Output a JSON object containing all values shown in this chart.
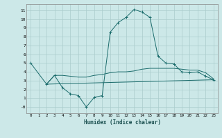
{
  "xlabel": "Humidex (Indice chaleur)",
  "background_color": "#cce8e8",
  "grid_color": "#aacccc",
  "line_color": "#1a6b6b",
  "xlim": [
    -0.5,
    23.5
  ],
  "ylim": [
    -0.7,
    11.7
  ],
  "yticks": [
    0,
    1,
    2,
    3,
    4,
    5,
    6,
    7,
    8,
    9,
    10,
    11
  ],
  "ytick_labels": [
    "-0",
    "1",
    "2",
    "3",
    "4",
    "5",
    "6",
    "7",
    "8",
    "9",
    "10",
    "11"
  ],
  "xticks": [
    0,
    1,
    2,
    3,
    4,
    5,
    6,
    7,
    8,
    9,
    10,
    11,
    12,
    13,
    14,
    15,
    16,
    17,
    18,
    19,
    20,
    21,
    22,
    23
  ],
  "line1_x": [
    0,
    2,
    3,
    4,
    5,
    6,
    7,
    8,
    9,
    10,
    11,
    12,
    13,
    14,
    15,
    16,
    17,
    18,
    19,
    20,
    21,
    22,
    23
  ],
  "line1_y": [
    5.0,
    2.6,
    3.6,
    2.2,
    1.5,
    1.3,
    0.0,
    1.1,
    1.3,
    8.5,
    9.6,
    10.2,
    11.1,
    10.8,
    10.2,
    5.8,
    5.0,
    4.9,
    4.0,
    3.9,
    4.0,
    3.5,
    3.1
  ],
  "line2_x": [
    2,
    3,
    4,
    5,
    6,
    7,
    8,
    9,
    10,
    11,
    12,
    13,
    14,
    15,
    16,
    17,
    18,
    19,
    20,
    21,
    22,
    23
  ],
  "line2_y": [
    2.6,
    3.6,
    3.6,
    3.5,
    3.4,
    3.4,
    3.6,
    3.7,
    3.9,
    4.0,
    4.0,
    4.1,
    4.3,
    4.4,
    4.4,
    4.4,
    4.4,
    4.3,
    4.2,
    4.2,
    3.9,
    3.2
  ],
  "line3_x": [
    2,
    23
  ],
  "line3_y": [
    2.6,
    3.1
  ],
  "marker_x": [
    0,
    2,
    3,
    4,
    5,
    6,
    7,
    8,
    9,
    10,
    11,
    12,
    13,
    14,
    15,
    16,
    17,
    18,
    19,
    20,
    21,
    22,
    23
  ],
  "marker_y": [
    5.0,
    2.6,
    3.6,
    2.2,
    1.5,
    1.3,
    0.0,
    1.1,
    1.3,
    8.5,
    9.6,
    10.2,
    11.1,
    10.8,
    10.2,
    5.8,
    5.0,
    4.9,
    4.0,
    3.9,
    4.0,
    3.5,
    3.1
  ]
}
